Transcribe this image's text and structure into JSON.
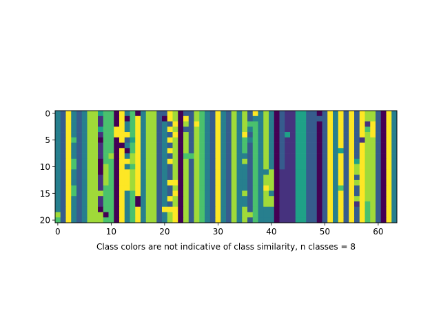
{
  "chart_data": {
    "type": "heatmap",
    "title": "",
    "xlabel": "Class colors are not indicative of class similarity, n classes = 8",
    "ylabel": "",
    "n_classes": 8,
    "n_rows": 21,
    "n_cols": 64,
    "x_ticks": [
      0,
      10,
      20,
      30,
      40,
      50,
      60
    ],
    "y_ticks": [
      0,
      5,
      10,
      15,
      20
    ],
    "xlim": [
      -0.5,
      63.5
    ],
    "ylim": [
      20.5,
      -0.5
    ],
    "colormap": "viridis",
    "class_colors": [
      "#440154",
      "#46327e",
      "#365c8d",
      "#277f8e",
      "#1fa187",
      "#4ac16d",
      "#a0da39",
      "#fde725"
    ],
    "grid": false,
    "base_columns": [
      3,
      2,
      7,
      3,
      2,
      3,
      6,
      6,
      1,
      5,
      5,
      0,
      7,
      3,
      5,
      7,
      3,
      6,
      6,
      2,
      3,
      2,
      7,
      0,
      6,
      2,
      6,
      5,
      3,
      2,
      7,
      3,
      2,
      6,
      3,
      6,
      2,
      5,
      3,
      6,
      3,
      0,
      2,
      1,
      1,
      4,
      4,
      2,
      2,
      0,
      2,
      7,
      3,
      7,
      2,
      7,
      2,
      7,
      6,
      6,
      2,
      0,
      7,
      3
    ],
    "overrides": [
      [
        0,
        8,
        4
      ],
      [
        0,
        15,
        0
      ],
      [
        0,
        20,
        2
      ],
      [
        0,
        21,
        7
      ],
      [
        0,
        22,
        6
      ],
      [
        0,
        24,
        2
      ],
      [
        0,
        35,
        6
      ],
      [
        0,
        37,
        7
      ],
      [
        1,
        13,
        0
      ],
      [
        1,
        17,
        6
      ],
      [
        1,
        20,
        0
      ],
      [
        1,
        21,
        7
      ],
      [
        1,
        22,
        6
      ],
      [
        1,
        24,
        7
      ],
      [
        1,
        37,
        3
      ],
      [
        1,
        49,
        2
      ],
      [
        2,
        26,
        7
      ],
      [
        2,
        36,
        5
      ],
      [
        2,
        58,
        1
      ],
      [
        2,
        59,
        7
      ],
      [
        3,
        8,
        4
      ],
      [
        3,
        11,
        7
      ],
      [
        3,
        21,
        7
      ],
      [
        3,
        22,
        6
      ],
      [
        3,
        24,
        2
      ],
      [
        3,
        25,
        2
      ],
      [
        3,
        26,
        6
      ],
      [
        3,
        36,
        3
      ],
      [
        3,
        42,
        2
      ],
      [
        3,
        58,
        5
      ],
      [
        3,
        59,
        7
      ],
      [
        4,
        11,
        7
      ],
      [
        4,
        13,
        7
      ],
      [
        4,
        35,
        7
      ],
      [
        4,
        42,
        2
      ],
      [
        4,
        43,
        4
      ],
      [
        4,
        59,
        7
      ],
      [
        5,
        3,
        5
      ],
      [
        5,
        8,
        0
      ],
      [
        5,
        13,
        2
      ],
      [
        5,
        14,
        4
      ],
      [
        5,
        21,
        7
      ],
      [
        5,
        22,
        6
      ],
      [
        5,
        35,
        5
      ],
      [
        5,
        36,
        3
      ],
      [
        5,
        42,
        2
      ],
      [
        5,
        57,
        1
      ],
      [
        6,
        12,
        0
      ],
      [
        6,
        14,
        5
      ],
      [
        6,
        22,
        6
      ],
      [
        6,
        24,
        6
      ],
      [
        6,
        35,
        5
      ],
      [
        6,
        42,
        2
      ],
      [
        7,
        13,
        0
      ],
      [
        7,
        14,
        5
      ],
      [
        7,
        21,
        7
      ],
      [
        7,
        22,
        6
      ],
      [
        7,
        24,
        6
      ],
      [
        7,
        25,
        2
      ],
      [
        7,
        35,
        5
      ],
      [
        7,
        42,
        2
      ],
      [
        7,
        53,
        4
      ],
      [
        8,
        10,
        6
      ],
      [
        8,
        12,
        7
      ],
      [
        8,
        14,
        6
      ],
      [
        8,
        22,
        6
      ],
      [
        8,
        24,
        5
      ],
      [
        8,
        25,
        5
      ],
      [
        8,
        35,
        3
      ],
      [
        8,
        42,
        2
      ],
      [
        9,
        3,
        5
      ],
      [
        9,
        8,
        0
      ],
      [
        9,
        13,
        7
      ],
      [
        9,
        14,
        6
      ],
      [
        9,
        21,
        7
      ],
      [
        9,
        22,
        6
      ],
      [
        9,
        42,
        2
      ],
      [
        9,
        56,
        4
      ],
      [
        10,
        3,
        5
      ],
      [
        10,
        8,
        0
      ],
      [
        10,
        9,
        6
      ],
      [
        10,
        22,
        6
      ],
      [
        10,
        35,
        3
      ],
      [
        10,
        42,
        2
      ],
      [
        10,
        56,
        6
      ],
      [
        11,
        8,
        0
      ],
      [
        11,
        9,
        6
      ],
      [
        11,
        13,
        7
      ],
      [
        11,
        14,
        6
      ],
      [
        11,
        22,
        6
      ],
      [
        11,
        25,
        2
      ],
      [
        11,
        35,
        3
      ],
      [
        11,
        39,
        3
      ],
      [
        11,
        40,
        6
      ],
      [
        11,
        41,
        0
      ],
      [
        11,
        42,
        1
      ],
      [
        11,
        43,
        1
      ],
      [
        11,
        56,
        6
      ],
      [
        12,
        9,
        6
      ],
      [
        12,
        13,
        7
      ],
      [
        12,
        14,
        6
      ],
      [
        12,
        22,
        6
      ],
      [
        12,
        24,
        6
      ],
      [
        12,
        25,
        2
      ],
      [
        12,
        35,
        3
      ],
      [
        12,
        40,
        6
      ],
      [
        12,
        42,
        1
      ],
      [
        13,
        9,
        6
      ],
      [
        13,
        13,
        7
      ],
      [
        13,
        14,
        6
      ],
      [
        13,
        21,
        7
      ],
      [
        13,
        24,
        6
      ],
      [
        13,
        35,
        3
      ],
      [
        13,
        40,
        6
      ],
      [
        13,
        42,
        1
      ],
      [
        13,
        56,
        6
      ],
      [
        14,
        3,
        5
      ],
      [
        14,
        13,
        7
      ],
      [
        14,
        14,
        6
      ],
      [
        14,
        22,
        6
      ],
      [
        14,
        24,
        6
      ],
      [
        14,
        35,
        3
      ],
      [
        14,
        39,
        7
      ],
      [
        14,
        40,
        6
      ],
      [
        14,
        42,
        1
      ],
      [
        14,
        53,
        5
      ],
      [
        15,
        3,
        5
      ],
      [
        15,
        8,
        6
      ],
      [
        15,
        15,
        7
      ],
      [
        15,
        24,
        6
      ],
      [
        15,
        42,
        1
      ],
      [
        16,
        15,
        0
      ],
      [
        16,
        21,
        7
      ],
      [
        16,
        22,
        6
      ],
      [
        16,
        24,
        6
      ],
      [
        16,
        35,
        3
      ],
      [
        16,
        40,
        6
      ],
      [
        16,
        42,
        1
      ],
      [
        16,
        56,
        6
      ],
      [
        17,
        15,
        0
      ],
      [
        17,
        22,
        6
      ],
      [
        17,
        35,
        3
      ],
      [
        17,
        40,
        6
      ],
      [
        17,
        42,
        1
      ],
      [
        17,
        56,
        1
      ],
      [
        17,
        58,
        5
      ],
      [
        18,
        8,
        0
      ],
      [
        18,
        14,
        5
      ],
      [
        18,
        20,
        7
      ],
      [
        18,
        21,
        7
      ],
      [
        18,
        35,
        6
      ],
      [
        18,
        39,
        3
      ],
      [
        18,
        42,
        1
      ],
      [
        18,
        58,
        5
      ],
      [
        19,
        0,
        6
      ],
      [
        19,
        8,
        6
      ],
      [
        19,
        9,
        0
      ],
      [
        19,
        14,
        5
      ],
      [
        19,
        21,
        6
      ],
      [
        19,
        35,
        6
      ],
      [
        19,
        36,
        6
      ],
      [
        19,
        39,
        3
      ],
      [
        19,
        42,
        1
      ],
      [
        19,
        58,
        5
      ],
      [
        20,
        0,
        5
      ],
      [
        20,
        8,
        6
      ],
      [
        20,
        14,
        5
      ],
      [
        20,
        21,
        6
      ],
      [
        20,
        35,
        6
      ],
      [
        20,
        39,
        3
      ],
      [
        20,
        42,
        1
      ],
      [
        20,
        58,
        5
      ]
    ]
  }
}
